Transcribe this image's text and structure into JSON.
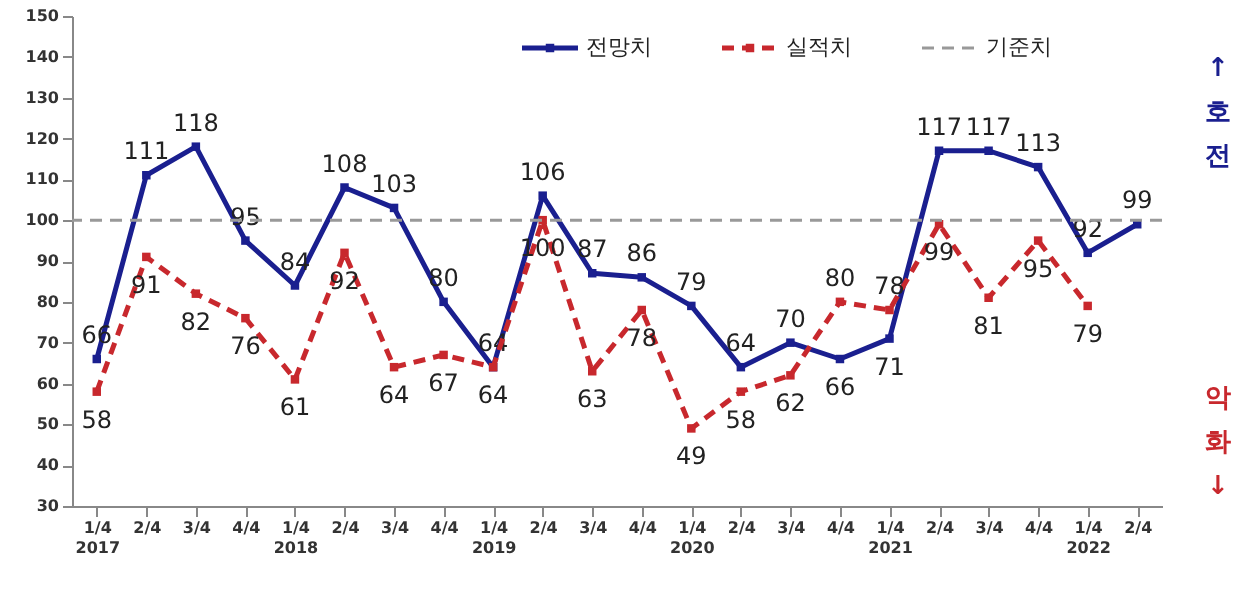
{
  "chart_data": {
    "type": "line",
    "categories": [
      "1/4\n2017",
      "2/4",
      "3/4",
      "4/4",
      "1/4\n2018",
      "2/4",
      "3/4",
      "4/4",
      "1/4\n2019",
      "2/4",
      "3/4",
      "4/4",
      "1/4\n2020",
      "2/4",
      "3/4",
      "4/4",
      "1/4\n2021",
      "2/4",
      "3/4",
      "4/4",
      "1/4\n2022",
      "2/4"
    ],
    "series": [
      {
        "name": "전망치",
        "color": "#1a1f8f",
        "line_style": "solid",
        "values": [
          66,
          111,
          118,
          95,
          84,
          108,
          103,
          80,
          64,
          106,
          87,
          86,
          79,
          64,
          70,
          66,
          71,
          117,
          117,
          113,
          92,
          99
        ]
      },
      {
        "name": "실적치",
        "color": "#c8282d",
        "line_style": "dashed",
        "values": [
          58,
          91,
          82,
          76,
          61,
          92,
          64,
          67,
          64,
          100,
          63,
          78,
          49,
          58,
          62,
          80,
          78,
          99,
          81,
          95,
          79,
          null
        ]
      }
    ],
    "ylim": [
      30,
      150
    ],
    "yticks": [
      30,
      40,
      50,
      60,
      70,
      80,
      90,
      100,
      110,
      120,
      130,
      140,
      150
    ],
    "ref_lines": [
      {
        "axis": "y",
        "value": 100,
        "label": "기준치",
        "color": "#999999",
        "line_style": "dashed"
      }
    ],
    "annotations": [
      "↑호전",
      "악화↓"
    ],
    "data_labels": true,
    "marker": "square",
    "grid": false,
    "legend": "top"
  }
}
